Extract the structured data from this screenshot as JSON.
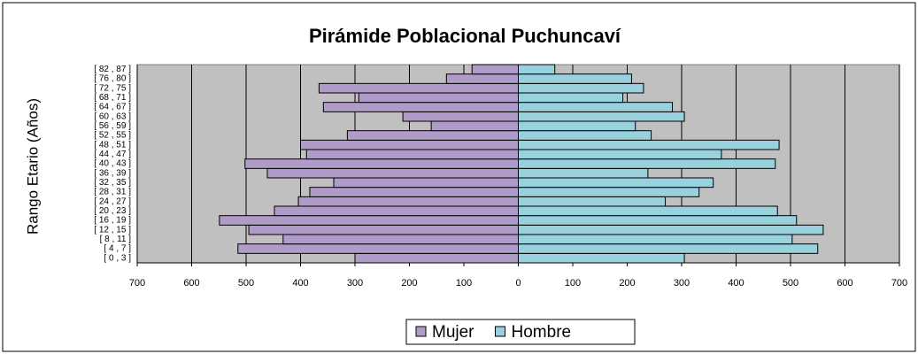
{
  "chart_data": {
    "type": "pyramid",
    "title": "Pirámide Poblacional Puchuncaví",
    "ylabel": "Rango Etario (Años)",
    "categories": [
      "[ 0 , 3 ]",
      "[ 4 , 7 ]",
      "[ 8 , 11 ]",
      "[ 12 , 15 ]",
      "[ 16 , 19 ]",
      "[ 20 , 23 ]",
      "[ 24 , 27 ]",
      "[ 28 , 31 ]",
      "[ 32 , 35 ]",
      "[ 36 , 39 ]",
      "[ 40 , 43 ]",
      "[ 44 , 47 ]",
      "[ 48 , 51 ]",
      "[ 52 , 55 ]",
      "[ 56 , 59 ]",
      "[ 60 , 63 ]",
      "[ 64 , 67 ]",
      "[ 68 , 71 ]",
      "[ 72 , 75 ]",
      "[ 76 , 80 ]",
      "[ 82 , 87 ]"
    ],
    "series": [
      {
        "name": "Mujer",
        "color": "#b09cc8",
        "values": [
          -300,
          -515,
          -432,
          -495,
          -549,
          -448,
          -404,
          -383,
          -339,
          -461,
          -502,
          -389,
          -400,
          -314,
          -160,
          -212,
          -358,
          -293,
          -366,
          -132,
          -85
        ]
      },
      {
        "name": "Hombre",
        "color": "#99d1dc",
        "values": [
          305,
          550,
          503,
          560,
          511,
          476,
          270,
          332,
          358,
          238,
          472,
          373,
          479,
          244,
          215,
          305,
          283,
          192,
          230,
          208,
          67
        ]
      }
    ],
    "xlim": [
      -700,
      700
    ],
    "xticks": [
      {
        "value": -700,
        "label": "700"
      },
      {
        "value": -600,
        "label": "600"
      },
      {
        "value": -500,
        "label": "500"
      },
      {
        "value": -400,
        "label": "400"
      },
      {
        "value": -300,
        "label": "300"
      },
      {
        "value": -200,
        "label": "200"
      },
      {
        "value": -100,
        "label": "100"
      },
      0,
      100,
      200,
      300,
      400,
      500,
      600,
      700
    ],
    "grid": true,
    "legend": "bottom"
  }
}
